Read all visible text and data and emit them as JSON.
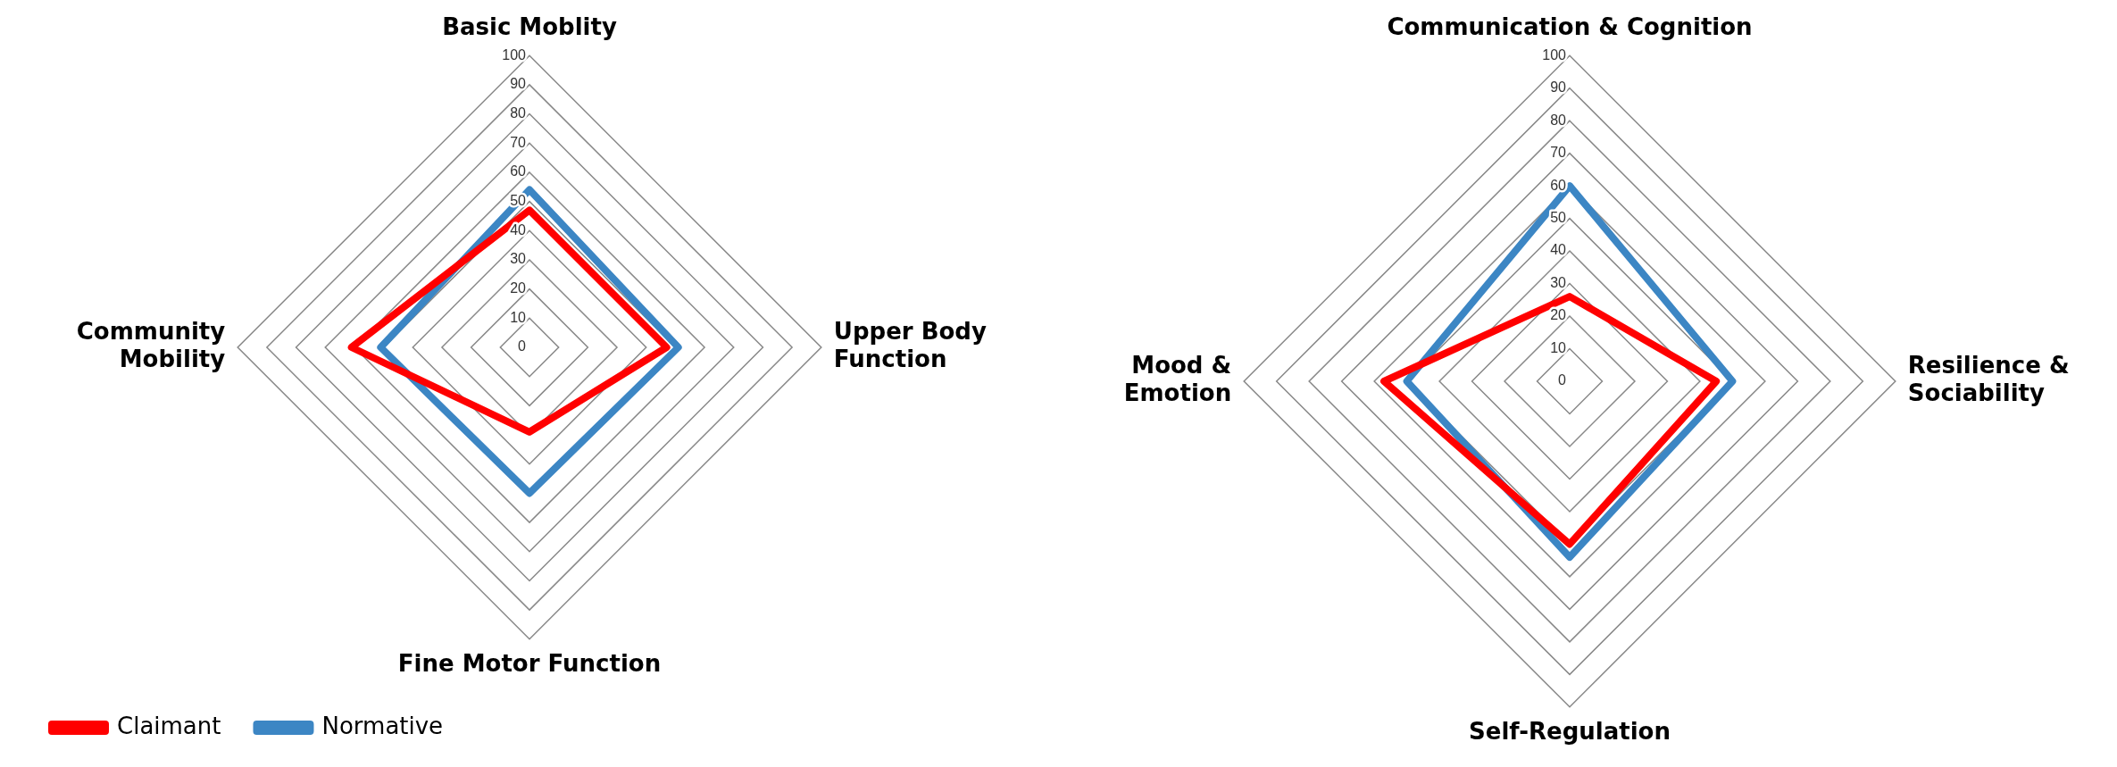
{
  "chart_data": [
    {
      "type": "radar",
      "categories": [
        "Basic Moblity",
        "Upper Body Function",
        "Fine Motor Function",
        "Community Mobility"
      ],
      "series": [
        {
          "name": "Claimant",
          "color": "#ff0000",
          "values": [
            47,
            47,
            29,
            61
          ]
        },
        {
          "name": "Normative",
          "color": "#3c86c4",
          "values": [
            54,
            51,
            50,
            51
          ]
        }
      ],
      "ylim": [
        0,
        100
      ],
      "yticks": [
        0,
        10,
        20,
        30,
        40,
        50,
        60,
        70,
        80,
        90,
        100
      ],
      "grid": true,
      "legend": "bottom left",
      "marker": "none"
    },
    {
      "type": "radar",
      "categories": [
        "Communication & Cognition",
        "Resilience & Sociability",
        "Self-Regulation",
        "Mood & Emotion"
      ],
      "series": [
        {
          "color": "#ff0000",
          "values": [
            26,
            45,
            50,
            57
          ]
        },
        {
          "color": "#3c86c4",
          "values": [
            60,
            50,
            54,
            50
          ]
        }
      ],
      "ylim": [
        0,
        100
      ],
      "yticks": [
        0,
        10,
        20,
        30,
        40,
        50,
        60,
        70,
        80,
        90,
        100
      ],
      "grid": true,
      "marker": "none"
    }
  ]
}
